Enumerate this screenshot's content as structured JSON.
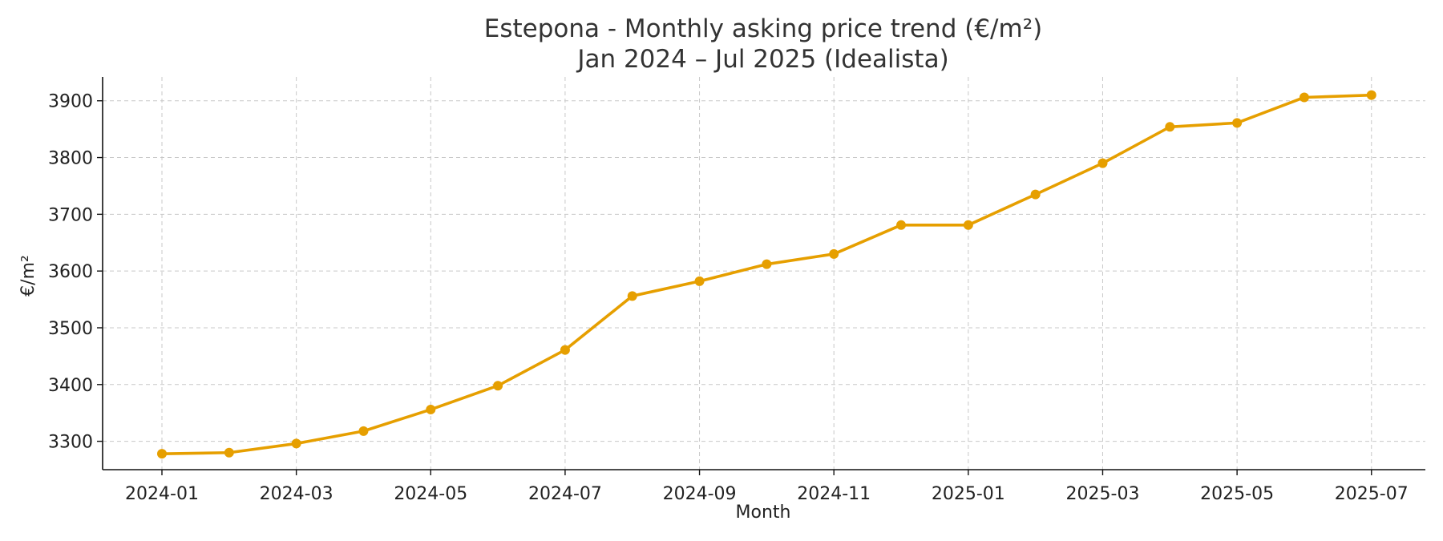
{
  "chart_data": {
    "type": "line",
    "title": "Estepona - Monthly asking price trend (€/m²)",
    "subtitle": "Jan 2024 – Jul 2025 (Idealista)",
    "xlabel": "Month",
    "ylabel": "€/m²",
    "x": [
      "2024-01",
      "2024-02",
      "2024-03",
      "2024-04",
      "2024-05",
      "2024-06",
      "2024-07",
      "2024-08",
      "2024-09",
      "2024-10",
      "2024-11",
      "2024-12",
      "2025-01",
      "2025-02",
      "2025-03",
      "2025-04",
      "2025-05",
      "2025-06",
      "2025-07"
    ],
    "x_tick_labels": [
      "2024-01",
      "2024-03",
      "2024-05",
      "2024-07",
      "2024-09",
      "2024-11",
      "2025-01",
      "2025-03",
      "2025-05",
      "2025-07"
    ],
    "series": [
      {
        "values": [
          3278,
          3280,
          3296,
          3318,
          3356,
          3398,
          3461,
          3556,
          3582,
          3612,
          3630,
          3681,
          3681,
          3735,
          3790,
          3854,
          3861,
          3906,
          3910
        ],
        "color": "#e69f00"
      }
    ],
    "y_ticks": [
      3300,
      3400,
      3500,
      3600,
      3700,
      3800,
      3900
    ],
    "ylim": [
      3250,
      3942
    ],
    "grid": true,
    "legend": "none"
  }
}
